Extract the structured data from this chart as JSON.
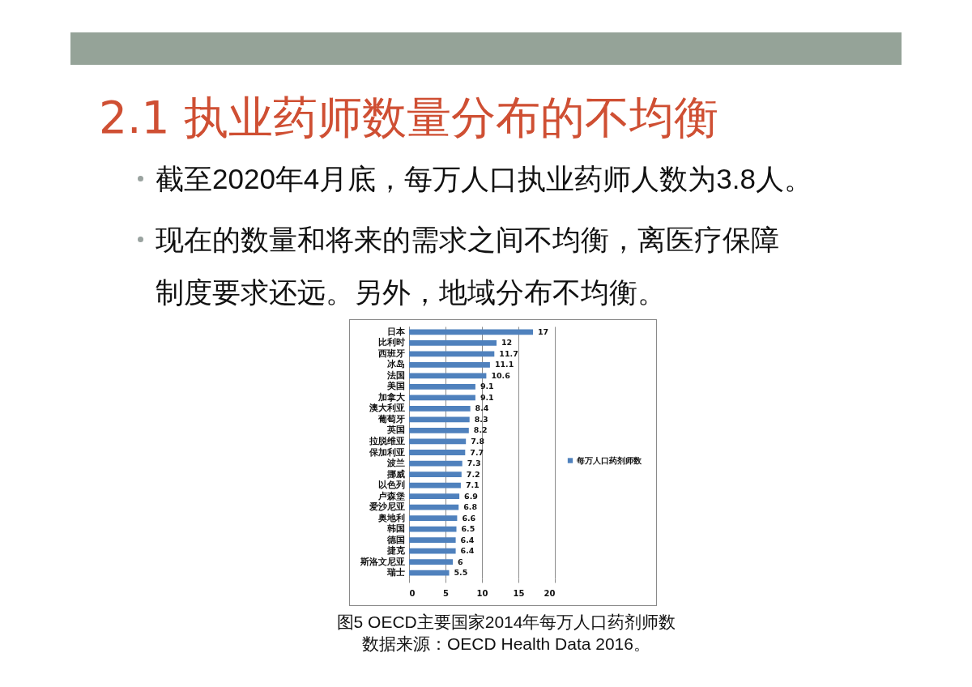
{
  "chart_data": {
    "type": "bar",
    "title": "2.1 执业药师数量分布的不均衡",
    "annotations": [
      "截至2020年4月底，每万人口执业药师人数为3.8人。",
      "现在的数量和将来的需求之间不均衡，离医疗保障制度要求还远。另外，地域分布不均衡。",
      "图5 OECD主要国家2014年每万人口药剂师数",
      "数据来源：OECD Health Data 2016。"
    ],
    "orientation": "horizontal",
    "categories": [
      "日本",
      "比利时",
      "西班牙",
      "冰岛",
      "法国",
      "美国",
      "加拿大",
      "澳大利亚",
      "葡萄牙",
      "英国",
      "拉脱维亚",
      "保加利亚",
      "波兰",
      "挪威",
      "以色列",
      "卢森堡",
      "爱沙尼亚",
      "奥地利",
      "韩国",
      "德国",
      "捷克",
      "斯洛文尼亚",
      "瑞士"
    ],
    "series": [
      {
        "name": "每万人口药剂师数",
        "color": "#4f81bd",
        "values": [
          17,
          12,
          11.7,
          11.1,
          10.6,
          9.1,
          9.1,
          8.4,
          8.3,
          8.2,
          7.8,
          7.7,
          7.3,
          7.2,
          7.1,
          6.9,
          6.8,
          6.6,
          6.5,
          6.4,
          6.4,
          6,
          5.5
        ]
      }
    ],
    "xlim": [
      0,
      20
    ],
    "xticks": [
      0,
      5,
      10,
      15,
      20
    ],
    "grid": "x",
    "legend": "right",
    "data_labels": true
  }
}
